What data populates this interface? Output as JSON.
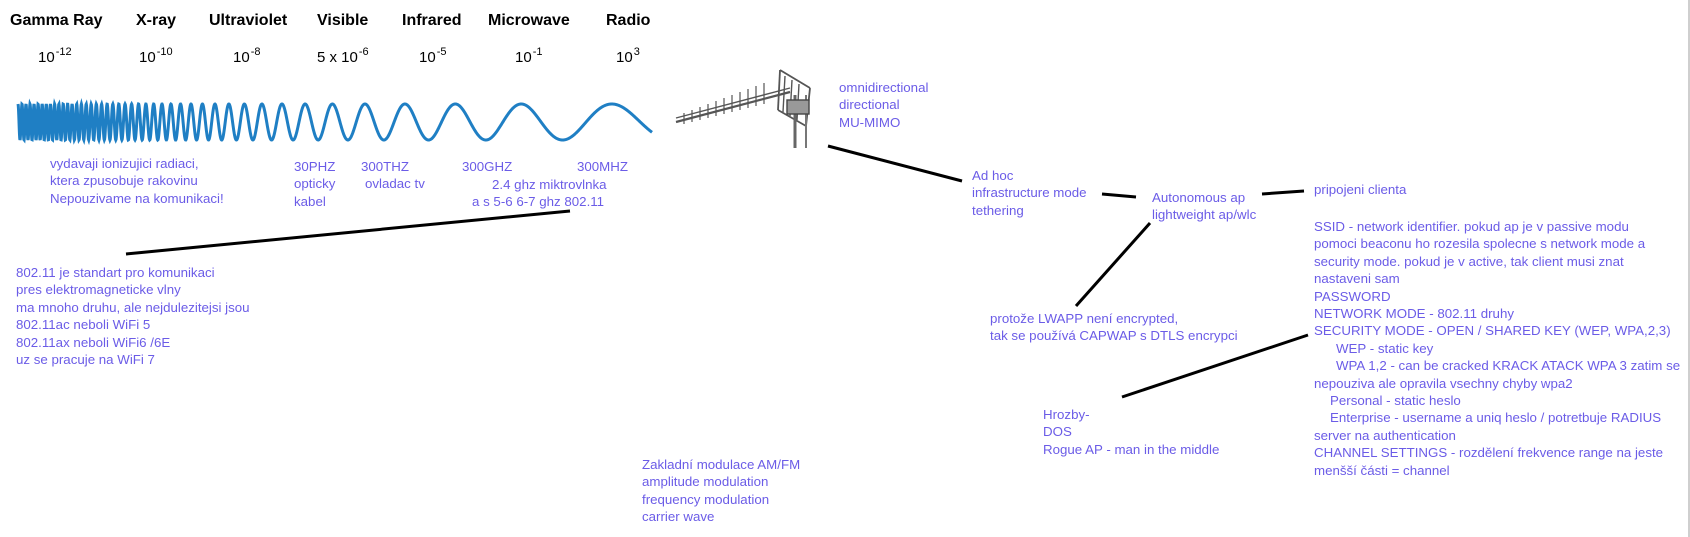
{
  "spectrum": {
    "bands": [
      {
        "name": "Gamma Ray",
        "base": "10",
        "exp": "-12"
      },
      {
        "name": "X-ray",
        "base": "10",
        "exp": "-10"
      },
      {
        "name": "Ultraviolet",
        "base": "10",
        "exp": "-8"
      },
      {
        "name": "Visible",
        "base": "5 x 10",
        "exp": "-6"
      },
      {
        "name": "Infrared",
        "base": "10",
        "exp": "-5"
      },
      {
        "name": "Microwave",
        "base": "10",
        "exp": "-1"
      },
      {
        "name": "Radio",
        "base": "10",
        "exp": "3"
      }
    ]
  },
  "notes": {
    "ionizing": [
      "vydavaji ionizujici radiaci,",
      "ktera zpusobuje rakovinu",
      "Nepouzivame na komunikaci!"
    ],
    "optical": [
      "30PHZ",
      "opticky",
      "kabel"
    ],
    "tv": [
      "300THZ",
      "ovladac tv"
    ],
    "ghz300": [
      "300GHZ"
    ],
    "mhz300": [
      "300MHZ"
    ],
    "microwave_oven": [
      "2.4 ghz miktrovlnka",
      "a s 5-6 6-7 ghz 802.11"
    ],
    "wifi_standard": [
      "802.11 je standart pro komunikaci",
      "pres elektromagneticke vlny",
      "ma mnoho druhu, ale nejdulezitejsi jsou",
      "802.11ac neboli WiFi 5",
      "802.11ax neboli WiFi6 /6E",
      "uz se pracuje na WiFi 7"
    ],
    "antenna_types": [
      "omnidirectional",
      "directional",
      "MU-MIMO"
    ],
    "modes": [
      "Ad hoc",
      "infrastructure mode",
      "tethering"
    ],
    "ap_types": [
      "Autonomous ap",
      "lightweight ap/wlc"
    ],
    "client": [
      "pripojeni clienta"
    ],
    "lwapp": [
      "protože LWAPP není encrypted,",
      "tak se používá CAPWAP s DTLS encrypci"
    ],
    "threats": [
      "Hrozby-",
      "DOS",
      "Rogue AP - man in the middle"
    ],
    "modulation": [
      "Zakladní modulace AM/FM",
      "amplitude modulation",
      "frequency modulation",
      "carrier wave"
    ],
    "settings": [
      {
        "text": "SSID - network identifier. pokud ap je v passive modu",
        "indent": 0
      },
      {
        "text": "pomoci beaconu ho rozesila spolecne s network mode a",
        "indent": 0
      },
      {
        "text": "security mode. pokud je v active, tak client musi znat",
        "indent": 0
      },
      {
        "text": "nastaveni sam",
        "indent": 0
      },
      {
        "text": "PASSWORD",
        "indent": 0
      },
      {
        "text": "NETWORK MODE - 802.11 druhy",
        "indent": 0
      },
      {
        "text": "SECURITY MODE - OPEN / SHARED KEY (WEP, WPA,2,3)",
        "indent": 0
      },
      {
        "text": "WEP - static key",
        "indent": 1
      },
      {
        "text": "WPA 1,2 - can be cracked KRACK ATACK WPA 3 zatim se",
        "indent": 1
      },
      {
        "text": "nepouziva ale opravila vsechny chyby wpa2",
        "indent": 0
      },
      {
        "text": "Personal - static heslo",
        "indent": 2
      },
      {
        "text": "Enterprise - username a uniq heslo / potretbuje RADIUS",
        "indent": 2
      },
      {
        "text": "server na authentication",
        "indent": 0
      },
      {
        "text": "CHANNEL SETTINGS - rozdělení frekvence range na jeste",
        "indent": 0
      },
      {
        "text": "menšší části = channel",
        "indent": 0
      }
    ]
  },
  "colors": {
    "note": "#6b5ce7",
    "wave": "#1f7fc4",
    "line": "#000000"
  }
}
